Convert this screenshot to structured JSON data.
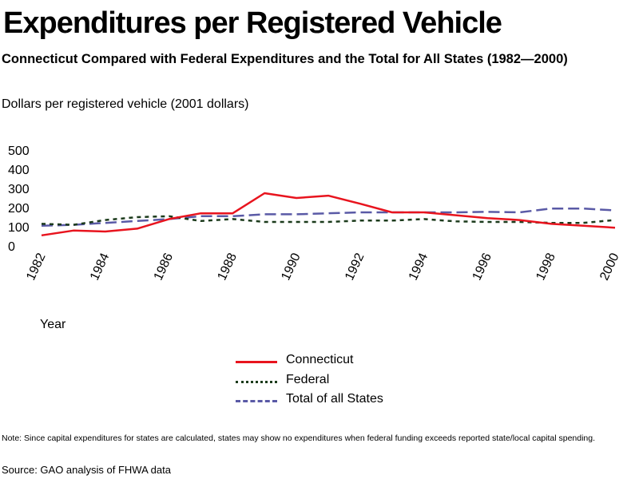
{
  "title": "Expenditures per Registered Vehicle",
  "subtitle": "Connecticut Compared with Federal Expenditures and the Total for All States (1982—2000)",
  "unit_label": "Dollars per registered vehicle (2001 dollars)",
  "note": "Note:  Since capital expenditures for states are calculated, states may show no expenditures when federal funding exceeds reported state/local capital spending.",
  "source": "Source: GAO analysis of FHWA data",
  "chart_data": {
    "type": "line",
    "title": "Expenditures per Registered Vehicle",
    "xlabel": "Year",
    "ylabel": "Dollars per registered vehicle (2001 dollars)",
    "x": [
      1982,
      1983,
      1984,
      1985,
      1986,
      1987,
      1988,
      1989,
      1990,
      1991,
      1992,
      1993,
      1994,
      1995,
      1996,
      1997,
      1998,
      1999,
      2000
    ],
    "x_tick_labels": [
      "1982",
      "1984",
      "1986",
      "1988",
      "1990",
      "1992",
      "1994",
      "1996",
      "1998",
      "2000"
    ],
    "y_tick_labels": [
      "0",
      "100",
      "200",
      "300",
      "400",
      "500"
    ],
    "ylim": [
      0,
      500
    ],
    "xlim": [
      1982,
      2000
    ],
    "grid": false,
    "legend_position": "bottom-center",
    "series": [
      {
        "name": "Connecticut",
        "color": "#e8141e",
        "dash": "solid",
        "values": [
          55,
          80,
          75,
          90,
          140,
          170,
          170,
          275,
          250,
          262,
          220,
          175,
          175,
          160,
          145,
          135,
          115,
          105,
          95
        ]
      },
      {
        "name": "Federal",
        "color": "#1c3b1c",
        "dash": "dotted",
        "values": [
          115,
          110,
          135,
          150,
          155,
          130,
          140,
          125,
          125,
          125,
          132,
          132,
          140,
          128,
          125,
          125,
          120,
          120,
          135
        ]
      },
      {
        "name": "Total of all States",
        "color": "#5a5aa6",
        "dash": "dashed",
        "values": [
          105,
          110,
          120,
          130,
          140,
          155,
          155,
          165,
          165,
          170,
          175,
          175,
          175,
          175,
          178,
          175,
          195,
          195,
          185
        ]
      }
    ]
  }
}
